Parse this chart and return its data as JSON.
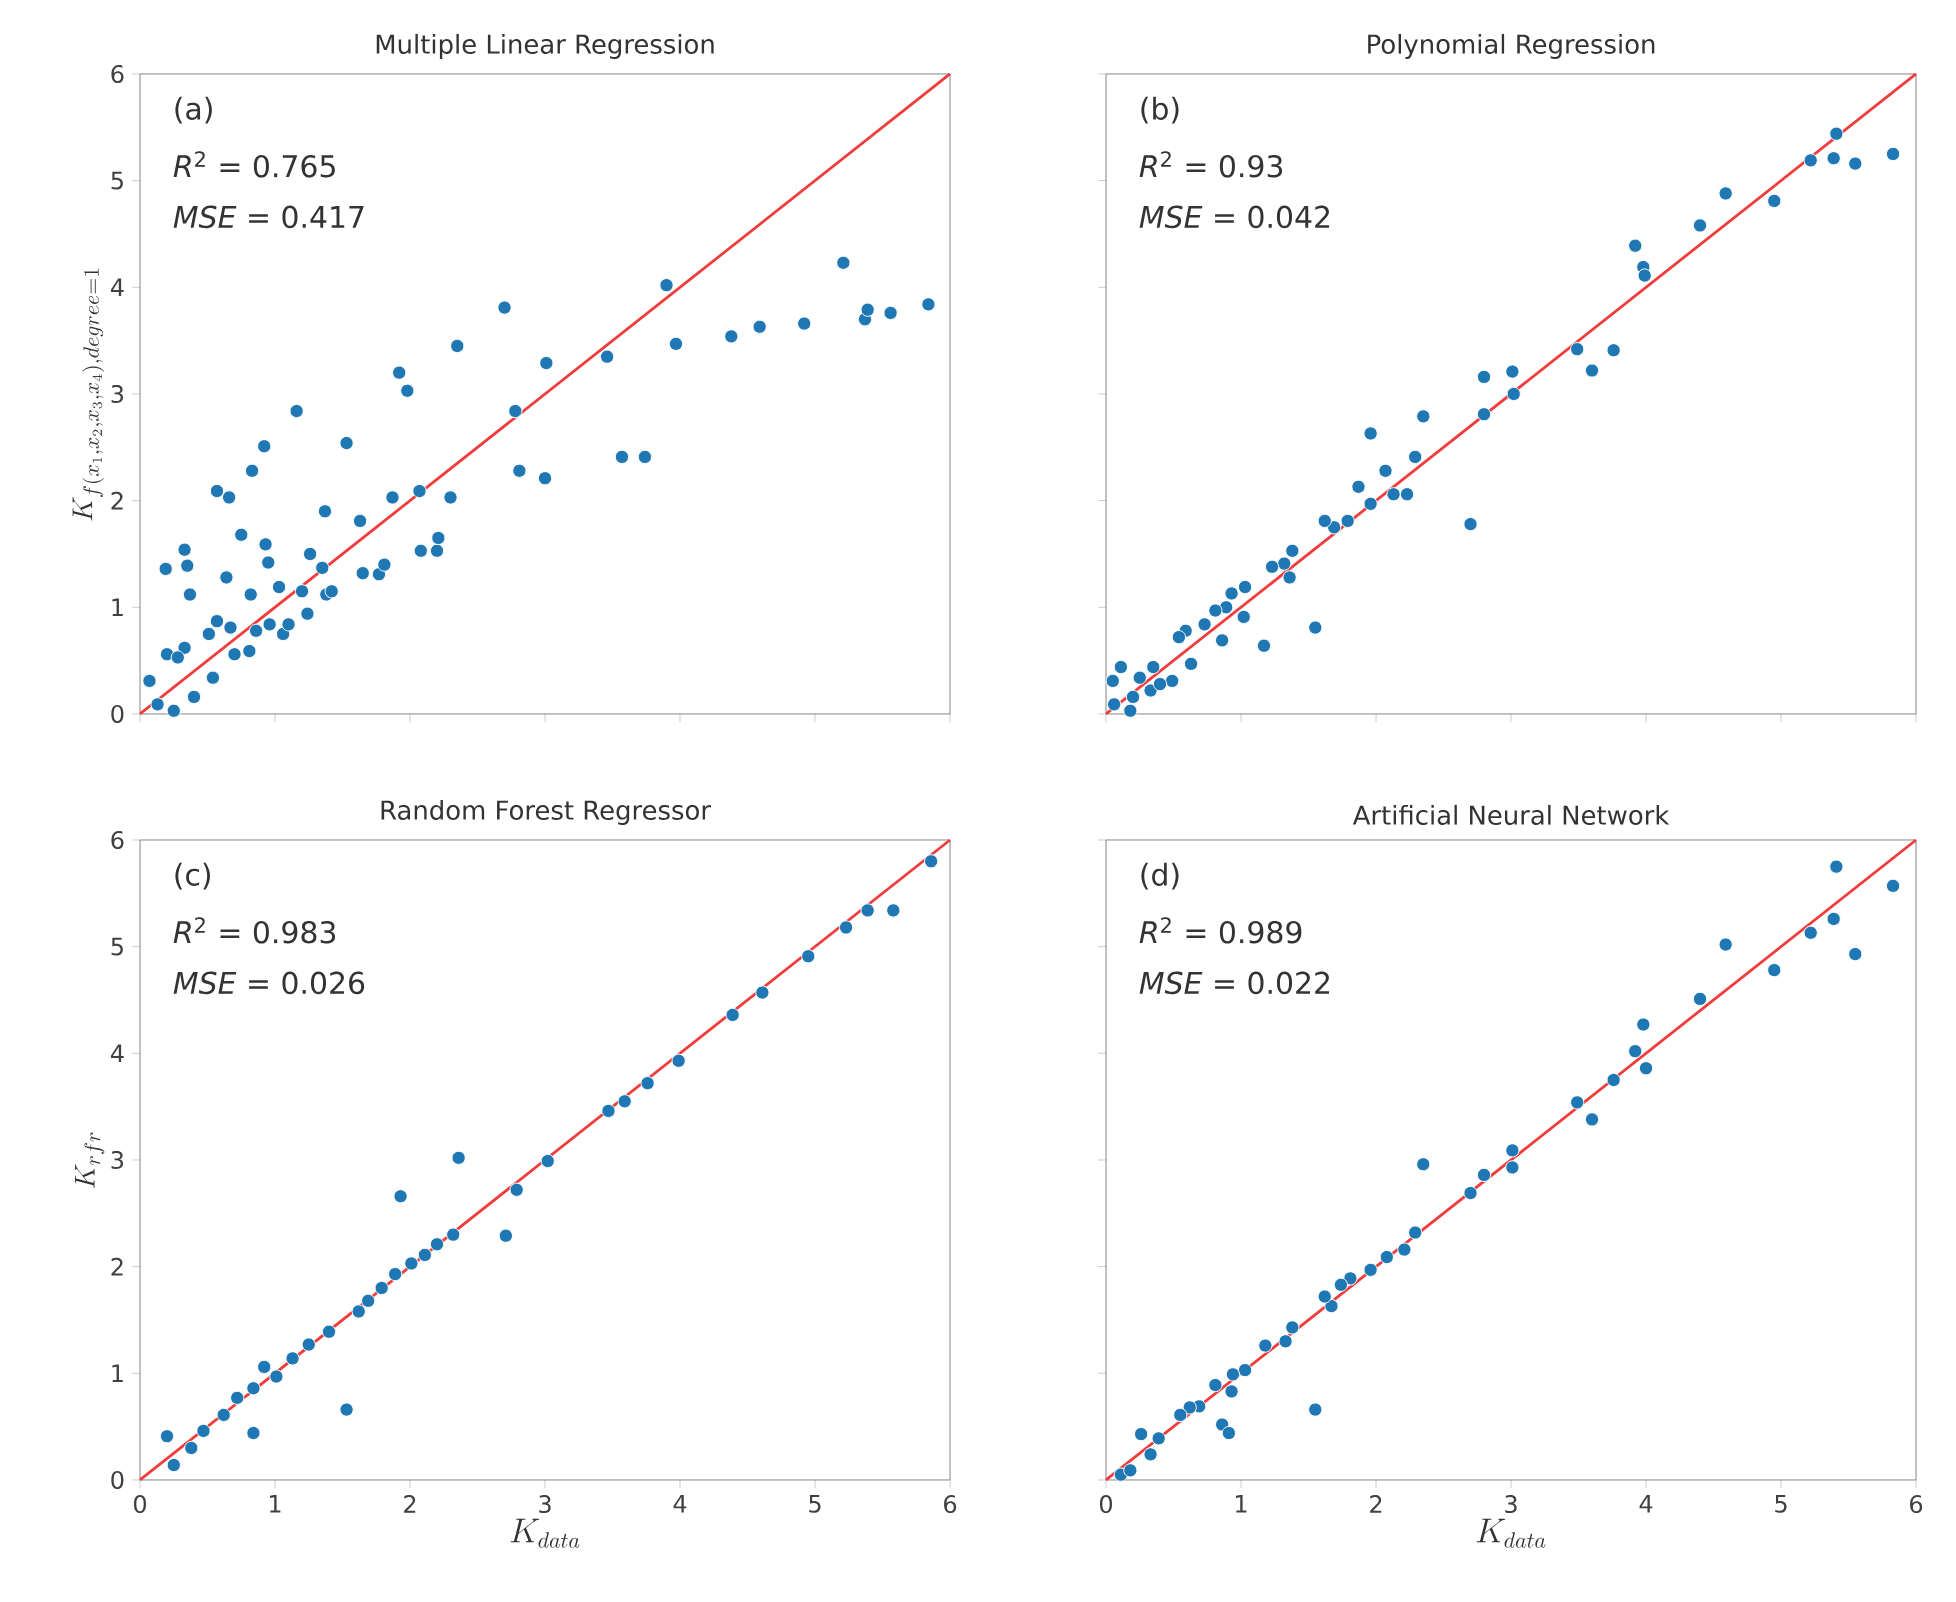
{
  "chart_data": [
    {
      "type": "scatter",
      "title": "Multiple Linear Regression",
      "ylabel": "K_{f(x_1, x_2, x_3, x_4), degree = 1}",
      "annotations": [
        "(a)",
        "*R*$^{2}$ = 0.765",
        "*MSE* = 0.417"
      ],
      "xlim": [
        0,
        6
      ],
      "ylim": [
        0,
        6
      ],
      "xticks": [
        0,
        1,
        2,
        3,
        4,
        5,
        6
      ],
      "yticks": [
        0,
        1,
        2,
        3,
        4,
        5,
        6
      ],
      "tick_labels": "y",
      "series": [
        {
          "marker": "circle",
          "color": "#1f77b4",
          "x": [
            0.07,
            0.2,
            0.19,
            0.33,
            0.35,
            0.37,
            0.33,
            0.28,
            0.4,
            0.13,
            0.25,
            0.51,
            0.54,
            0.57,
            0.57,
            0.66,
            0.64,
            0.75,
            0.67,
            0.7,
            0.81,
            0.83,
            0.92,
            0.82,
            0.93,
            0.95,
            0.96,
            0.86,
            1.03,
            1.06,
            1.1,
            1.16,
            1.2,
            1.24,
            1.26,
            1.35,
            1.37,
            1.38,
            1.42,
            1.53,
            1.63,
            1.65,
            1.77,
            1.81,
            1.87,
            1.92,
            1.98,
            2.07,
            2.08,
            2.2,
            2.21,
            2.3,
            2.35,
            2.7,
            2.78,
            2.81,
            3.0,
            3.01,
            3.46,
            3.57,
            3.74,
            3.9,
            3.97,
            4.38,
            4.59,
            4.92,
            5.21,
            5.37,
            5.39,
            5.56,
            5.84
          ],
          "values": [
            0.31,
            0.56,
            1.36,
            1.54,
            1.39,
            1.12,
            0.62,
            0.53,
            0.16,
            0.09,
            0.03,
            0.75,
            0.34,
            0.87,
            2.09,
            2.03,
            1.28,
            1.68,
            0.81,
            0.56,
            0.59,
            2.28,
            2.51,
            1.12,
            1.59,
            1.42,
            0.84,
            0.78,
            1.19,
            0.75,
            0.84,
            2.84,
            1.15,
            0.94,
            1.5,
            1.37,
            1.9,
            1.12,
            1.15,
            2.54,
            1.81,
            1.32,
            1.31,
            1.4,
            2.03,
            3.2,
            3.03,
            2.09,
            1.53,
            1.53,
            1.65,
            2.03,
            3.45,
            3.81,
            2.84,
            2.28,
            2.21,
            3.29,
            3.35,
            2.41,
            2.41,
            4.02,
            3.47,
            3.54,
            3.63,
            3.66,
            4.23,
            3.7,
            3.79,
            3.76,
            3.84
          ]
        },
        {
          "type": "line",
          "color": "#f03c3c",
          "x": [
            0,
            6
          ],
          "values": [
            0,
            6
          ]
        }
      ]
    },
    {
      "type": "scatter",
      "title": "Polynomial Regression",
      "annotations": [
        "(b)",
        "*R*$^{2}$ = 0.93",
        "*MSE* = 0.042"
      ],
      "xlim": [
        0,
        6
      ],
      "ylim": [
        0,
        6
      ],
      "xticks": [
        0,
        1,
        2,
        3,
        4,
        5,
        6
      ],
      "yticks": [
        0,
        1,
        2,
        3,
        4,
        5,
        6
      ],
      "tick_labels": false,
      "series": [
        {
          "marker": "circle",
          "color": "#1f77b4",
          "x": [
            5.83,
            5.55,
            5.39,
            5.41,
            5.22,
            4.95,
            4.59,
            4.4,
            3.92,
            3.98,
            3.99,
            3.76,
            3.6,
            3.49,
            3.01,
            3.02,
            2.8,
            2.8,
            2.7,
            2.35,
            2.29,
            2.23,
            2.13,
            2.07,
            1.96,
            1.96,
            1.87,
            1.79,
            1.69,
            1.62,
            1.55,
            1.38,
            1.36,
            1.32,
            1.23,
            1.17,
            1.03,
            1.02,
            0.93,
            0.89,
            0.86,
            0.81,
            0.73,
            0.63,
            0.59,
            0.54,
            0.49,
            0.35,
            0.33,
            0.25,
            0.2,
            0.11,
            0.05,
            0.06,
            0.18,
            0.4
          ],
          "values": [
            5.25,
            5.16,
            5.21,
            5.44,
            5.19,
            4.81,
            4.88,
            4.58,
            4.39,
            4.19,
            4.11,
            3.41,
            3.22,
            3.42,
            3.21,
            3.0,
            3.16,
            2.81,
            1.78,
            2.79,
            2.41,
            2.06,
            2.06,
            2.28,
            2.63,
            1.97,
            2.13,
            1.81,
            1.75,
            1.81,
            0.81,
            1.53,
            1.28,
            1.41,
            1.38,
            0.64,
            1.19,
            0.91,
            1.13,
            1.0,
            0.69,
            0.97,
            0.84,
            0.47,
            0.78,
            0.72,
            0.31,
            0.44,
            0.22,
            0.34,
            0.16,
            0.44,
            0.31,
            0.09,
            0.03,
            0.28
          ]
        },
        {
          "type": "line",
          "color": "#f03c3c",
          "x": [
            0,
            6
          ],
          "values": [
            0,
            6
          ]
        }
      ]
    },
    {
      "type": "scatter",
      "title": "Random Forest Regressor",
      "xlabel": "K_{data}",
      "ylabel": "K_{rfr}",
      "annotations": [
        "(c)",
        "*R*$^{2}$ = 0.983",
        "*MSE* = 0.026"
      ],
      "xlim": [
        0,
        6
      ],
      "ylim": [
        0,
        6
      ],
      "xticks": [
        0,
        1,
        2,
        3,
        4,
        5,
        6
      ],
      "yticks": [
        0,
        1,
        2,
        3,
        4,
        5,
        6
      ],
      "series": [
        {
          "marker": "circle",
          "color": "#1f77b4",
          "x": [
            0.2,
            0.25,
            0.38,
            0.47,
            0.62,
            0.72,
            0.84,
            0.84,
            0.92,
            1.01,
            1.13,
            1.25,
            1.4,
            1.53,
            1.62,
            1.69,
            1.79,
            1.89,
            1.93,
            2.01,
            2.11,
            2.2,
            2.32,
            2.36,
            2.71,
            2.79,
            3.02,
            3.47,
            3.59,
            3.76,
            3.99,
            4.39,
            4.61,
            4.95,
            5.23,
            5.39,
            5.58,
            5.86
          ],
          "values": [
            0.41,
            0.14,
            0.3,
            0.46,
            0.61,
            0.77,
            0.44,
            0.86,
            1.06,
            0.97,
            1.14,
            1.27,
            1.39,
            0.66,
            1.58,
            1.68,
            1.8,
            1.93,
            2.66,
            2.03,
            2.11,
            2.21,
            2.3,
            3.02,
            2.29,
            2.72,
            2.99,
            3.46,
            3.55,
            3.72,
            3.93,
            4.36,
            4.57,
            4.91,
            5.18,
            5.34,
            5.34,
            5.8
          ]
        },
        {
          "type": "line",
          "color": "#f03c3c",
          "x": [
            0,
            6
          ],
          "values": [
            0,
            6
          ]
        }
      ]
    },
    {
      "type": "scatter",
      "title": "Artificial Neural Network",
      "xlabel": "K_{data}",
      "annotations": [
        "(d)",
        "*R*$^{2}$ = 0.989",
        "*MSE* = 0.022"
      ],
      "xlim": [
        0,
        6
      ],
      "ylim": [
        0,
        6
      ],
      "xticks": [
        0,
        1,
        2,
        3,
        4,
        5,
        6
      ],
      "yticks": [
        0,
        1,
        2,
        3,
        4,
        5,
        6
      ],
      "tick_labels": "x",
      "series": [
        {
          "marker": "circle",
          "color": "#1f77b4",
          "x": [
            5.83,
            5.55,
            5.41,
            5.39,
            5.22,
            4.95,
            4.59,
            4.4,
            3.98,
            3.92,
            4.0,
            3.76,
            3.6,
            3.49,
            3.01,
            3.01,
            2.8,
            2.7,
            2.35,
            2.29,
            2.21,
            2.08,
            1.96,
            1.81,
            1.74,
            1.67,
            1.62,
            1.55,
            1.38,
            1.33,
            1.18,
            1.03,
            0.94,
            0.93,
            0.81,
            0.86,
            0.91,
            0.69,
            0.62,
            0.55,
            0.39,
            0.26,
            0.33,
            0.11,
            0.18
          ],
          "values": [
            5.57,
            4.93,
            5.75,
            5.26,
            5.13,
            4.78,
            5.02,
            4.51,
            4.27,
            4.02,
            3.86,
            3.75,
            3.38,
            3.54,
            3.09,
            2.93,
            2.86,
            2.69,
            2.96,
            2.32,
            2.16,
            2.09,
            1.97,
            1.89,
            1.83,
            1.63,
            1.72,
            0.66,
            1.43,
            1.3,
            1.26,
            1.03,
            0.99,
            0.83,
            0.89,
            0.52,
            0.44,
            0.69,
            0.68,
            0.61,
            0.39,
            0.43,
            0.24,
            0.05,
            0.09
          ]
        },
        {
          "type": "line",
          "color": "#f03c3c",
          "x": [
            0,
            6
          ],
          "values": [
            0,
            6
          ]
        }
      ]
    }
  ]
}
